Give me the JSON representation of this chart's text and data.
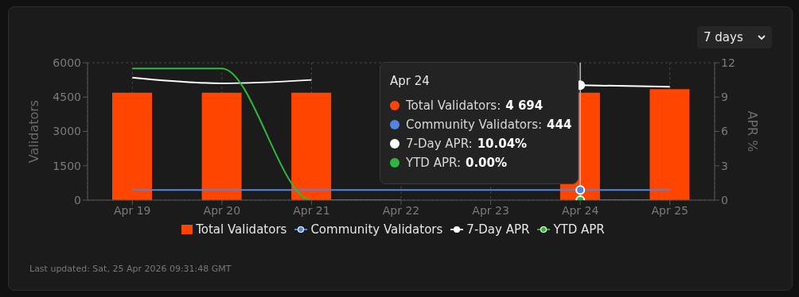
{
  "chart_data": {
    "type": "bar",
    "categories": [
      "Apr 19",
      "Apr 20",
      "Apr 21",
      "Apr 22",
      "Apr 23",
      "Apr 24",
      "Apr 25"
    ],
    "ylabel": "Validators",
    "y2label": "APR %",
    "ylim": [
      0,
      6000
    ],
    "yticks": [
      0,
      1500,
      3000,
      4500,
      6000
    ],
    "y2lim": [
      0,
      12
    ],
    "y2ticks": [
      0,
      3,
      6,
      9,
      12
    ],
    "grid": true,
    "legend": "bottom",
    "series": [
      {
        "name": "Total Validators",
        "color": "#ff4500",
        "values": [
          4694,
          4694,
          4694,
          null,
          null,
          4694,
          4850
        ]
      },
      {
        "name": "Community Validators",
        "type": "line",
        "color": "#5285e0",
        "values": [
          444,
          444,
          444,
          444,
          444,
          444,
          444
        ]
      },
      {
        "name": "7-Day APR",
        "type": "line",
        "axis": "y2",
        "color": "#ffffff",
        "values": [
          10.7,
          10.2,
          10.5,
          null,
          null,
          10.04,
          9.9
        ]
      },
      {
        "name": "YTD APR",
        "type": "line",
        "axis": "y2",
        "color": "#2db83d",
        "values": [
          11.5,
          11.5,
          0,
          0,
          null,
          0,
          0
        ]
      }
    ],
    "ref_lines": [
      {
        "axis": "x",
        "value": "Apr 24",
        "color": "#bbbbbb"
      }
    ],
    "annotations": [
      "7 days",
      "Apr 24",
      "Total Validators: 4 694",
      "Community Validators: 444",
      "7-Day APR: 10.04%",
      "YTD APR: 0.00%",
      "Last updated: Sat, 25 Apr 2026 09:31:48 GMT"
    ]
  }
}
